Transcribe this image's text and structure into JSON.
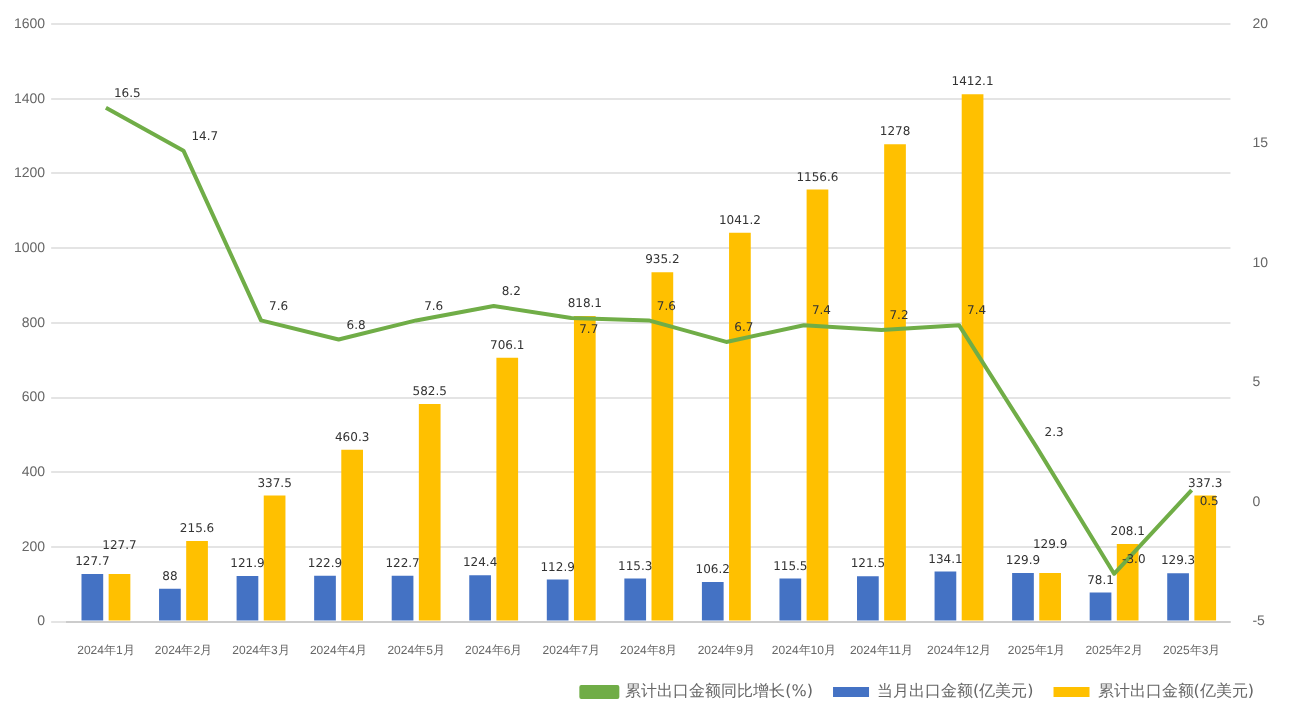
{
  "chart_data": {
    "type": "bar",
    "categories": [
      "2024年1月",
      "2024年2月",
      "2024年3月",
      "2024年4月",
      "2024年5月",
      "2024年6月",
      "2024年7月",
      "2024年8月",
      "2024年9月",
      "2024年10月",
      "2024年11月",
      "2024年12月",
      "2025年1月",
      "2025年2月",
      "2025年3月"
    ],
    "series": [
      {
        "name": "当月出口金额(亿美元)",
        "color": "#4472c4",
        "values": [
          127.7,
          88,
          121.9,
          122.9,
          122.7,
          124.4,
          112.9,
          115.3,
          106.2,
          115.5,
          121.5,
          134.1,
          129.9,
          78.1,
          129.3
        ]
      },
      {
        "name": "累计出口金额(亿美元)",
        "color": "#ffc000",
        "values": [
          127.7,
          215.6,
          337.5,
          460.3,
          582.5,
          706.1,
          818.1,
          935.2,
          1041.2,
          1156.6,
          1278,
          1412.1,
          129.9,
          208.1,
          337.3
        ]
      },
      {
        "name": "累计出口金额同比增长(%)",
        "type": "line",
        "axis": "y2",
        "color": "#70ad47",
        "values": [
          16.5,
          14.7,
          7.6,
          6.8,
          7.6,
          8.2,
          7.7,
          7.6,
          6.7,
          7.4,
          7.2,
          7.4,
          2.3,
          -3.0,
          0.5
        ],
        "value_labels": [
          "16.5",
          "14.7",
          "7.6",
          "6.8",
          "7.6",
          "8.2",
          "7.7",
          "7.6",
          "6.7",
          "7.4",
          "7.2",
          "7.4",
          "2.3",
          "-3.0",
          "0.5"
        ]
      }
    ],
    "ylim": [
      0,
      1600
    ],
    "yticks": [
      0,
      200,
      400,
      600,
      800,
      1000,
      1200,
      1400,
      1600
    ],
    "y2lim": [
      -5,
      20
    ],
    "y2ticks": [
      -5,
      0,
      5,
      10,
      15,
      20
    ],
    "grid": "y",
    "legend": "bottom",
    "marker": "none",
    "data_labels": true
  }
}
